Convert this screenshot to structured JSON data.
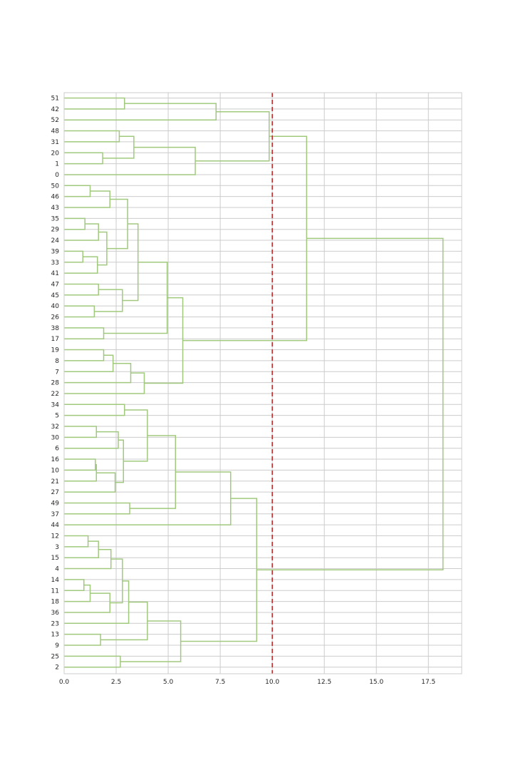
{
  "chart_data": {
    "type": "dendrogram",
    "orientation": "horizontal",
    "xlim": [
      0,
      19.1
    ],
    "x_ticks": [
      0,
      2.5,
      5,
      7.5,
      10,
      12.5,
      15,
      17.5
    ],
    "x_tick_labels": [
      "0.0",
      "2.5",
      "5.0",
      "7.5",
      "10.0",
      "12.5",
      "15.0",
      "17.5"
    ],
    "leaves": [
      "51",
      "42",
      "52",
      "48",
      "31",
      "20",
      "1",
      "0",
      "50",
      "46",
      "43",
      "35",
      "29",
      "24",
      "39",
      "33",
      "41",
      "47",
      "45",
      "40",
      "26",
      "38",
      "17",
      "19",
      "8",
      "7",
      "28",
      "22",
      "34",
      "5",
      "32",
      "30",
      "6",
      "16",
      "10",
      "21",
      "27",
      "49",
      "37",
      "44",
      "12",
      "3",
      "15",
      "4",
      "14",
      "11",
      "18",
      "36",
      "23",
      "13",
      "9",
      "25",
      "2"
    ],
    "merges": [
      {
        "id": "A1",
        "children": [
          "51",
          "42"
        ],
        "height": 2.9
      },
      {
        "id": "A2",
        "children": [
          "A1",
          "52"
        ],
        "height": 7.3
      },
      {
        "id": "A3",
        "children": [
          "48",
          "31"
        ],
        "height": 2.65
      },
      {
        "id": "A4",
        "children": [
          "20",
          "1"
        ],
        "height": 1.85
      },
      {
        "id": "A5",
        "children": [
          "A3",
          "A4"
        ],
        "height": 3.35
      },
      {
        "id": "A6",
        "children": [
          "A5",
          "0"
        ],
        "height": 6.3
      },
      {
        "id": "A7",
        "children": [
          "A2",
          "A6"
        ],
        "height": 9.85
      },
      {
        "id": "B1",
        "children": [
          "50",
          "46"
        ],
        "height": 1.25
      },
      {
        "id": "B2",
        "children": [
          "B1",
          "43"
        ],
        "height": 2.2
      },
      {
        "id": "B3",
        "children": [
          "35",
          "29"
        ],
        "height": 1.0
      },
      {
        "id": "B4",
        "children": [
          "B3",
          "24"
        ],
        "height": 1.65
      },
      {
        "id": "B5",
        "children": [
          "39",
          "33"
        ],
        "height": 0.9
      },
      {
        "id": "B6",
        "children": [
          "B5",
          "41"
        ],
        "height": 1.6
      },
      {
        "id": "B7",
        "children": [
          "B4",
          "B6"
        ],
        "height": 2.05
      },
      {
        "id": "B8",
        "children": [
          "B2",
          "B7"
        ],
        "height": 3.05
      },
      {
        "id": "B9",
        "children": [
          "47",
          "45"
        ],
        "height": 1.65
      },
      {
        "id": "B10",
        "children": [
          "40",
          "26"
        ],
        "height": 1.45
      },
      {
        "id": "B11",
        "children": [
          "B9",
          "B10"
        ],
        "height": 2.8
      },
      {
        "id": "B12",
        "children": [
          "B8",
          "B11"
        ],
        "height": 3.55
      },
      {
        "id": "B13",
        "children": [
          "38",
          "17"
        ],
        "height": 1.9
      },
      {
        "id": "B14",
        "children": [
          "B12",
          "B13"
        ],
        "height": 4.95
      },
      {
        "id": "B15",
        "children": [
          "19",
          "8"
        ],
        "height": 1.9
      },
      {
        "id": "B16",
        "children": [
          "B15",
          "7"
        ],
        "height": 2.35
      },
      {
        "id": "B17",
        "children": [
          "B16",
          "28"
        ],
        "height": 3.2
      },
      {
        "id": "B18",
        "children": [
          "B17",
          "22"
        ],
        "height": 3.85
      },
      {
        "id": "B19",
        "children": [
          "B14",
          "B18"
        ],
        "height": 5.7
      },
      {
        "id": "B20",
        "children": [
          "A7",
          "B19"
        ],
        "height": 11.65
      },
      {
        "id": "C1",
        "children": [
          "34",
          "5"
        ],
        "height": 2.9
      },
      {
        "id": "C2",
        "children": [
          "32",
          "30"
        ],
        "height": 1.55
      },
      {
        "id": "C3",
        "children": [
          "C2",
          "6"
        ],
        "height": 2.6
      },
      {
        "id": "C4",
        "children": [
          "16",
          "10"
        ],
        "height": 1.5
      },
      {
        "id": "C5",
        "children": [
          "C4",
          "21"
        ],
        "height": 1.55
      },
      {
        "id": "C6",
        "children": [
          "C5",
          "27"
        ],
        "height": 2.45
      },
      {
        "id": "C7",
        "children": [
          "C3",
          "C6"
        ],
        "height": 2.85
      },
      {
        "id": "C8",
        "children": [
          "C1",
          "C7"
        ],
        "height": 4.0
      },
      {
        "id": "C9",
        "children": [
          "49",
          "37"
        ],
        "height": 3.15
      },
      {
        "id": "C10",
        "children": [
          "C8",
          "C9"
        ],
        "height": 5.35
      },
      {
        "id": "C11",
        "children": [
          "C10",
          "44"
        ],
        "height": 8.0
      },
      {
        "id": "D1",
        "children": [
          "12",
          "3"
        ],
        "height": 1.15
      },
      {
        "id": "D2",
        "children": [
          "D1",
          "15"
        ],
        "height": 1.65
      },
      {
        "id": "D3",
        "children": [
          "D2",
          "4"
        ],
        "height": 2.25
      },
      {
        "id": "D4",
        "children": [
          "14",
          "11"
        ],
        "height": 0.95
      },
      {
        "id": "D5",
        "children": [
          "D4",
          "18"
        ],
        "height": 1.25
      },
      {
        "id": "D6",
        "children": [
          "D5",
          "36"
        ],
        "height": 2.2
      },
      {
        "id": "D7",
        "children": [
          "D3",
          "D6"
        ],
        "height": 2.8
      },
      {
        "id": "D8",
        "children": [
          "D7",
          "23"
        ],
        "height": 3.1
      },
      {
        "id": "D9",
        "children": [
          "13",
          "9"
        ],
        "height": 1.75
      },
      {
        "id": "D10",
        "children": [
          "D8",
          "D9"
        ],
        "height": 4.0
      },
      {
        "id": "D11",
        "children": [
          "25",
          "2"
        ],
        "height": 2.7
      },
      {
        "id": "D12",
        "children": [
          "D10",
          "D11"
        ],
        "height": 5.6
      },
      {
        "id": "D13",
        "children": [
          "C11",
          "D12"
        ],
        "height": 9.25
      },
      {
        "id": "ROOT",
        "children": [
          "B20",
          "D13"
        ],
        "height": 18.2
      }
    ],
    "threshold": 10.0,
    "link_color": "#a1c97e",
    "threshold_color": "#c62828",
    "grid": true,
    "title": "",
    "xlabel": "",
    "ylabel": ""
  }
}
